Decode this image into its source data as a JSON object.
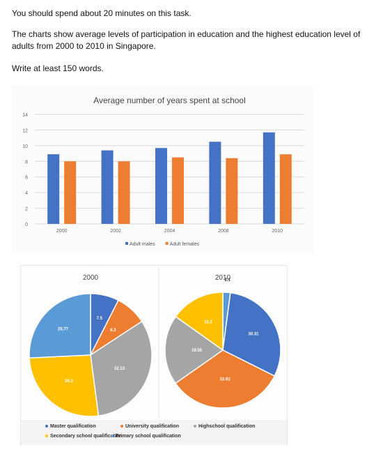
{
  "task": {
    "line1": "You should spend about 20 minutes on this task.",
    "line2": "The charts show average levels of participation in education and the highest education level of adults from 2000 to 2010 in Singapore.",
    "line3": "Write at least 150 words."
  },
  "chart_data": [
    {
      "type": "bar",
      "title": "Average number of years spent at school",
      "categories": [
        "2000",
        "2002",
        "2004",
        "2008",
        "2010"
      ],
      "series": [
        {
          "name": "Adult males",
          "values": [
            8.9,
            9.4,
            9.7,
            10.5,
            11.7
          ],
          "color": "#4472c4"
        },
        {
          "name": "Adult females",
          "values": [
            8.0,
            8.0,
            8.5,
            8.4,
            8.9
          ],
          "color": "#ed7d31"
        }
      ],
      "ylim": [
        0,
        14
      ],
      "yticks": [
        "0",
        "2",
        "4",
        "6",
        "8",
        "10",
        "12",
        "14"
      ],
      "grid": true,
      "legend": "bottom"
    },
    {
      "type": "pie",
      "title": "2000",
      "slices": [
        {
          "label": "Master qualification",
          "value": 7.5,
          "display": "7.5",
          "color": "#4472c4"
        },
        {
          "label": "University qualification",
          "value": 8.3,
          "display": "8.3",
          "color": "#ed7d31"
        },
        {
          "label": "Highschool qualification",
          "value": 32.13,
          "display": "32.13",
          "color": "#a5a5a5"
        },
        {
          "label": "Secondary school qualification",
          "value": 26.3,
          "display": "26.3",
          "color": "#ffc000"
        },
        {
          "label": "Primary school qualification",
          "value": 25.77,
          "display": "25.77",
          "color": "#5b9bd5"
        }
      ]
    },
    {
      "type": "pie",
      "title": "2010",
      "slices": [
        {
          "label": "Primary school qualification",
          "value": 2.1,
          "display": "2.1",
          "color": "#5b9bd5"
        },
        {
          "label": "Master qualification",
          "value": 30.31,
          "display": "30.31",
          "color": "#4472c4"
        },
        {
          "label": "University qualification",
          "value": 32.93,
          "display": "32.93",
          "color": "#ed7d31"
        },
        {
          "label": "Highschool qualification",
          "value": 19.55,
          "display": "19.55",
          "color": "#a5a5a5"
        },
        {
          "label": "Secondary school qualification",
          "value": 15.2,
          "display": "15.2",
          "color": "#ffc000"
        }
      ]
    }
  ],
  "pie_legend": [
    {
      "label": "Master qualification",
      "color": "#4472c4"
    },
    {
      "label": "University qualification",
      "color": "#ed7d31"
    },
    {
      "label": "Highschool qualification",
      "color": "#a5a5a5"
    },
    {
      "label": "Secondary school qualification",
      "color": "#ffc000"
    },
    {
      "label": "Primary school qualification",
      "color": "#5b9bd5"
    }
  ]
}
